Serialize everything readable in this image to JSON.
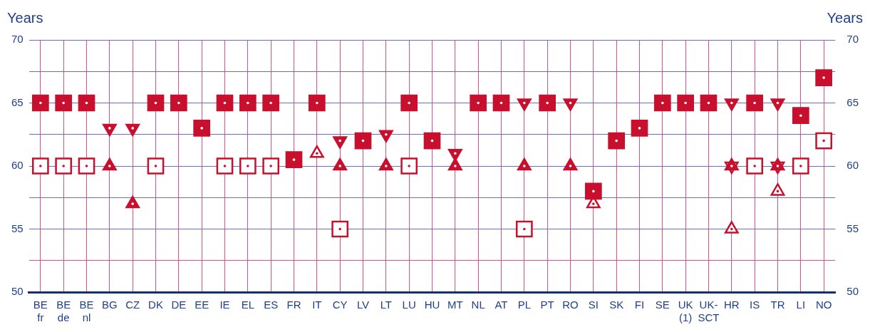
{
  "chart_data": {
    "type": "scatter",
    "ylabel": "Years",
    "y2label": "Years",
    "categories": [
      "BE\nfr",
      "BE\nde",
      "BE\nnl",
      "BG",
      "CZ",
      "DK",
      "DE",
      "EE",
      "IE",
      "EL",
      "ES",
      "FR",
      "IT",
      "CY",
      "LV",
      "LT",
      "LU",
      "HU",
      "MT",
      "NL",
      "AT",
      "PL",
      "PT",
      "RO",
      "SI",
      "SK",
      "FI",
      "SE",
      "UK\n(1)",
      "UK-\nSCT",
      "HR",
      "IS",
      "TR",
      "LI",
      "NO"
    ],
    "series": [
      {
        "color": "#c8102e",
        "marker": "square",
        "values": [
          65,
          65,
          65,
          null,
          null,
          65,
          65,
          63,
          65,
          65,
          65,
          60.5,
          65,
          null,
          62,
          null,
          65,
          62,
          null,
          65,
          65,
          null,
          65,
          null,
          58,
          62,
          63,
          65,
          65,
          65,
          null,
          65,
          null,
          64,
          67
        ]
      },
      {
        "color": "#c8102e",
        "marker": "square-open",
        "values": [
          60,
          60,
          60,
          null,
          null,
          60,
          null,
          null,
          60,
          60,
          60,
          null,
          null,
          55,
          null,
          null,
          60,
          null,
          null,
          null,
          null,
          55,
          null,
          null,
          null,
          null,
          null,
          null,
          null,
          null,
          null,
          60,
          null,
          60,
          62
        ]
      },
      {
        "color": "#c8102e",
        "marker": "triangle-down",
        "values": [
          null,
          null,
          null,
          63,
          63,
          null,
          null,
          null,
          null,
          null,
          null,
          null,
          null,
          62,
          null,
          62.5,
          null,
          null,
          61,
          null,
          null,
          65,
          null,
          65,
          null,
          null,
          null,
          null,
          null,
          null,
          65,
          null,
          65,
          null,
          null
        ]
      },
      {
        "color": "#c8102e",
        "marker": "triangle-down-open",
        "values": [
          null,
          null,
          null,
          null,
          null,
          null,
          null,
          null,
          null,
          null,
          null,
          null,
          null,
          null,
          null,
          null,
          null,
          null,
          null,
          null,
          null,
          null,
          null,
          null,
          null,
          null,
          null,
          null,
          null,
          null,
          60,
          null,
          60,
          null,
          null
        ]
      },
      {
        "color": "#c8102e",
        "marker": "triangle",
        "values": [
          null,
          null,
          null,
          60,
          57,
          null,
          null,
          null,
          null,
          null,
          null,
          null,
          null,
          60,
          null,
          60,
          null,
          null,
          60,
          null,
          null,
          60,
          null,
          60,
          null,
          null,
          null,
          null,
          null,
          null,
          60,
          null,
          60,
          null,
          null
        ]
      },
      {
        "color": "#c8102e",
        "marker": "triangle-open",
        "values": [
          null,
          null,
          null,
          null,
          null,
          null,
          null,
          null,
          null,
          null,
          null,
          null,
          61,
          null,
          null,
          null,
          null,
          null,
          null,
          null,
          null,
          null,
          null,
          null,
          57,
          null,
          null,
          null,
          null,
          null,
          55,
          null,
          58,
          null,
          null
        ]
      }
    ],
    "ylim": [
      50,
      70
    ],
    "yticks": [
      50,
      {
        "value": 52.5,
        "label": null
      },
      55,
      {
        "value": 57.5,
        "label": null
      },
      60,
      {
        "value": 62.5,
        "label": null
      },
      65,
      {
        "value": 67.5,
        "label": null
      },
      70
    ],
    "y2lim": [
      50,
      70
    ],
    "y2ticks": [
      50,
      55,
      60,
      65,
      70
    ],
    "grid": true,
    "legend": false
  }
}
